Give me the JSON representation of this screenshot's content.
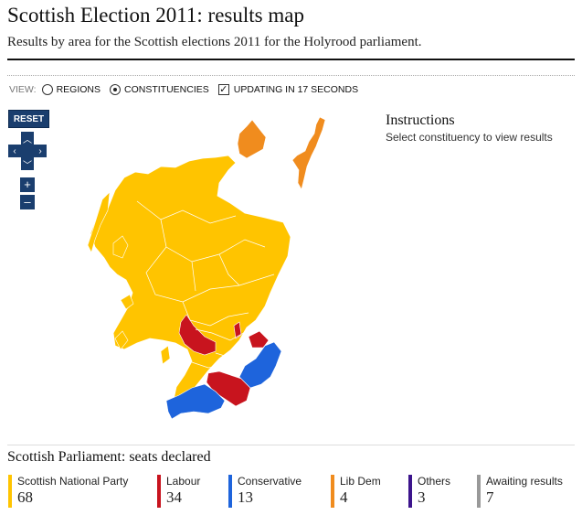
{
  "header": {
    "title": "Scottish Election 2011: results map",
    "subtitle": "Results by area for the Scottish elections 2011 for the Holyrood parliament."
  },
  "view_bar": {
    "label": "VIEW:",
    "options": [
      {
        "label": "REGIONS",
        "selected": false
      },
      {
        "label": "CONSTITUENCIES",
        "selected": true
      }
    ],
    "updating_label": "UPDATING IN 17 SECONDS",
    "updating_checked": true
  },
  "map_controls": {
    "reset_label": "RESET",
    "zoom_in": "+",
    "zoom_out": "–"
  },
  "instructions": {
    "title": "Instructions",
    "text": "Select constituency to view results"
  },
  "colors": {
    "snp": "#ffc400",
    "labour": "#c8141e",
    "conservative": "#1e64dc",
    "libdem": "#f08c1e",
    "others": "#3c148c",
    "awaiting": "#999999"
  },
  "seats": {
    "title": "Scottish Parliament: seats declared",
    "parties": [
      {
        "name": "Scottish National Party",
        "seats": "68",
        "color": "#ffc400"
      },
      {
        "name": "Labour",
        "seats": "34",
        "color": "#c8141e"
      },
      {
        "name": "Conservative",
        "seats": "13",
        "color": "#1e64dc"
      },
      {
        "name": "Lib Dem",
        "seats": "4",
        "color": "#f08c1e"
      },
      {
        "name": "Others",
        "seats": "3",
        "color": "#3c148c"
      },
      {
        "name": "Awaiting results",
        "seats": "7",
        "color": "#999999"
      }
    ]
  }
}
